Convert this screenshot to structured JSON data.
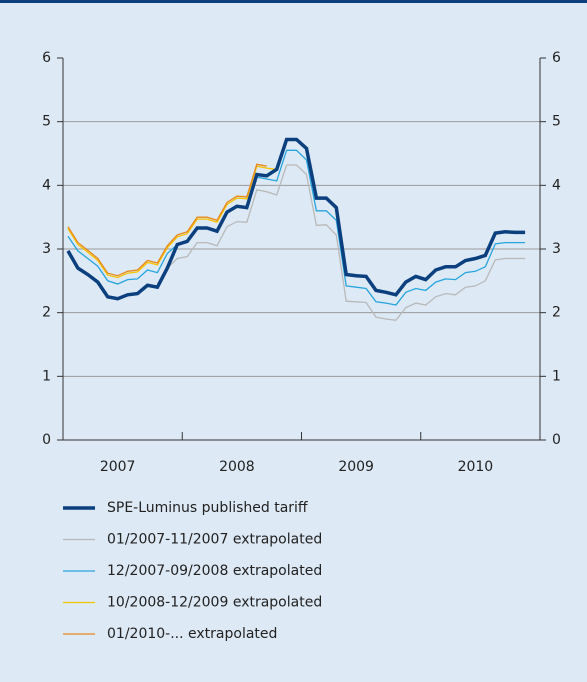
{
  "chart_data": {
    "type": "line",
    "categories": [
      null,
      null,
      null,
      null,
      null,
      "2007",
      null,
      null,
      null,
      null,
      null,
      null,
      null,
      null,
      null,
      null,
      null,
      "2008",
      null,
      null,
      null,
      null,
      null,
      null,
      null,
      null,
      null,
      null,
      null,
      "2009",
      null,
      null,
      null,
      null,
      null,
      null,
      null,
      null,
      null,
      null,
      null,
      "2010",
      null,
      null,
      null,
      null,
      null,
      null
    ],
    "ylim": [
      0,
      6
    ],
    "yticks": [
      0,
      1,
      2,
      3,
      4,
      5,
      6
    ],
    "grid": true,
    "series": [
      {
        "name": "SPE-Luminus published tariff",
        "color": "#0b3f7e",
        "values": [
          2.97,
          2.7,
          2.6,
          2.48,
          2.25,
          2.22,
          2.28,
          2.3,
          2.43,
          2.4,
          2.7,
          3.07,
          3.12,
          3.33,
          3.33,
          3.28,
          3.58,
          3.67,
          3.65,
          4.17,
          4.15,
          4.25,
          4.72,
          4.72,
          4.58,
          3.8,
          3.8,
          3.65,
          2.6,
          2.58,
          2.57,
          2.35,
          2.32,
          2.28,
          2.48,
          2.57,
          2.52,
          2.67,
          2.72,
          2.72,
          2.82,
          2.85,
          2.9,
          3.25,
          3.27,
          3.26,
          3.26,
          null
        ]
      },
      {
        "name": "01/2007-11/2007 extrapolated",
        "color": "#b9b9b9",
        "values": [
          null,
          null,
          null,
          null,
          null,
          null,
          null,
          null,
          null,
          null,
          2.7,
          2.85,
          2.88,
          3.1,
          3.1,
          3.05,
          3.35,
          3.43,
          3.42,
          3.93,
          3.9,
          3.85,
          4.32,
          4.32,
          4.17,
          3.37,
          3.38,
          3.22,
          2.18,
          2.17,
          2.16,
          1.93,
          1.9,
          1.88,
          2.08,
          2.15,
          2.12,
          2.25,
          2.3,
          2.28,
          2.4,
          2.42,
          2.5,
          2.83,
          2.85,
          2.85,
          2.85,
          null
        ]
      },
      {
        "name": "12/2007-09/2008 extrapolated",
        "color": "#28a4de",
        "values": [
          3.2,
          2.97,
          2.85,
          2.73,
          2.5,
          2.45,
          2.52,
          2.53,
          2.67,
          2.63,
          2.93,
          3.07,
          3.12,
          3.33,
          3.33,
          3.28,
          3.58,
          3.67,
          3.65,
          4.13,
          4.1,
          4.07,
          4.55,
          4.55,
          4.4,
          3.6,
          3.6,
          3.45,
          2.42,
          2.4,
          2.38,
          2.17,
          2.15,
          2.12,
          2.32,
          2.38,
          2.35,
          2.48,
          2.53,
          2.52,
          2.63,
          2.65,
          2.72,
          3.08,
          3.1,
          3.1,
          3.1,
          null
        ]
      },
      {
        "name": "10/2008-12/2009 extrapolated",
        "color": "#f5c400",
        "values": [
          3.32,
          3.07,
          2.95,
          2.82,
          2.59,
          2.55,
          2.62,
          2.64,
          2.79,
          2.75,
          3.02,
          3.19,
          3.24,
          3.47,
          3.47,
          3.42,
          3.7,
          3.8,
          3.79,
          4.3,
          4.27,
          4.25,
          null,
          null,
          null,
          null,
          null,
          null,
          null,
          null,
          null,
          null,
          null,
          null,
          null,
          null,
          null,
          null,
          null,
          null,
          null,
          null,
          null,
          null,
          null,
          null,
          null,
          null
        ]
      },
      {
        "name": "01/2010-... extrapolated",
        "color": "#e8891c",
        "values": [
          3.35,
          3.1,
          2.98,
          2.85,
          2.62,
          2.58,
          2.65,
          2.67,
          2.82,
          2.78,
          3.05,
          3.22,
          3.27,
          3.5,
          3.5,
          3.45,
          3.73,
          3.83,
          3.82,
          4.33,
          4.3,
          null,
          null,
          null,
          null,
          null,
          null,
          null,
          null,
          null,
          null,
          null,
          null,
          null,
          null,
          null,
          null,
          null,
          null,
          null,
          null,
          null,
          null,
          null,
          null,
          null,
          null,
          null
        ]
      }
    ]
  }
}
